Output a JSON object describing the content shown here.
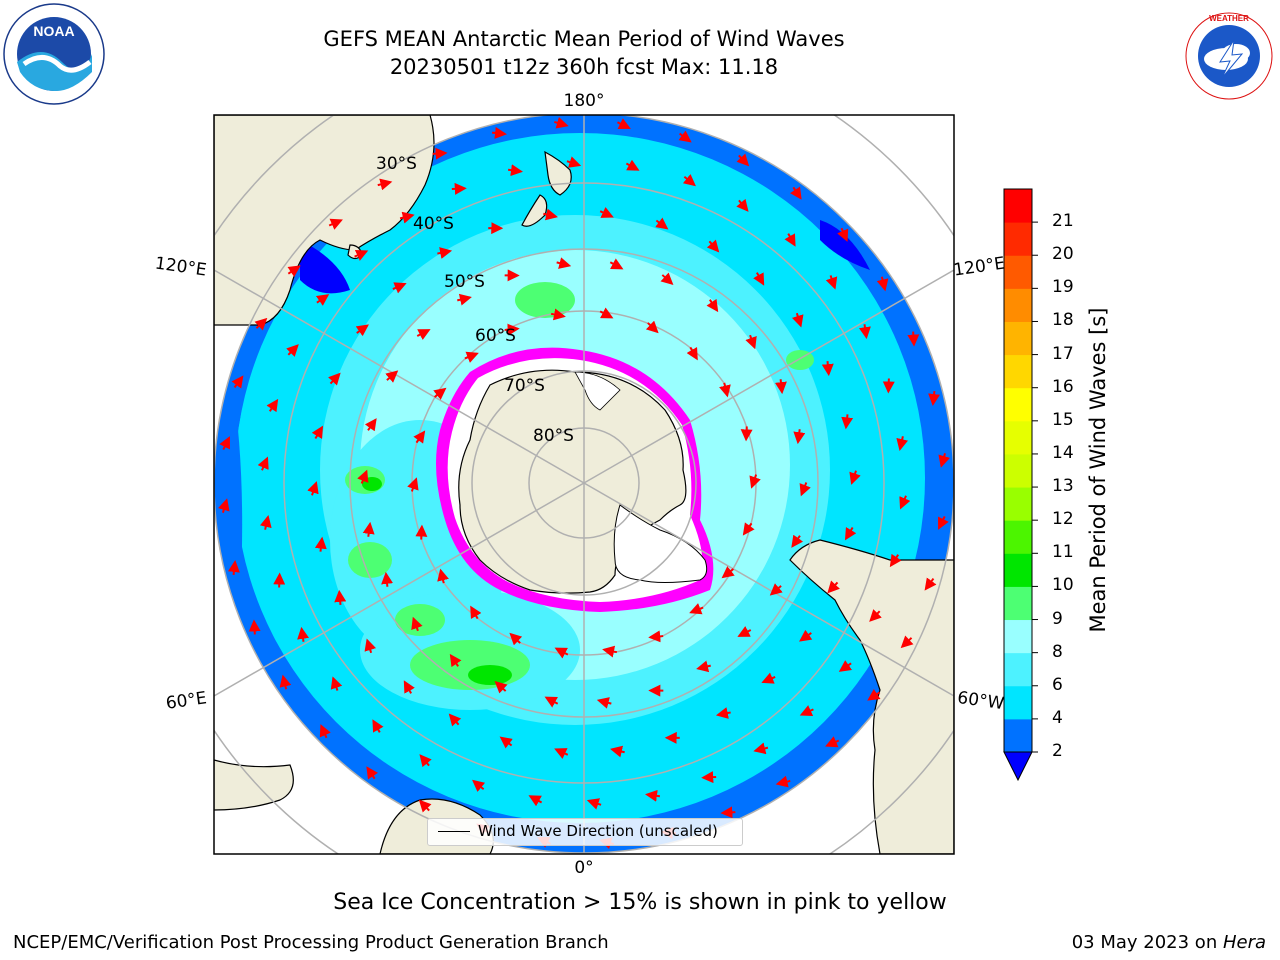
{
  "header": {
    "title_line1": "GEFS MEAN Antarctic Mean Period of Wind Waves",
    "title_line2": "20230501 t12z 360h fcst   Max: 11.18"
  },
  "logos": {
    "noaa": "NOAA",
    "noaa_ring_text": "NATIONAL OCEANIC AND ATMOSPHERIC ADMINISTRATION · U.S. DEPARTMENT OF COMMERCE",
    "nws_ring_text": "NATIONAL WEATHER SERVICE"
  },
  "map": {
    "projection": "south-polar-stereographic",
    "longitude_labels": [
      "180°",
      "120°E",
      "120°E",
      "60°E",
      "60°W",
      "0°"
    ],
    "latitude_labels": [
      "30°S",
      "40°S",
      "50°S",
      "60°S",
      "70°S",
      "80°S"
    ],
    "legend": "Wind Wave Direction (unscaled)",
    "arrow_color": "#ff0000",
    "land_color": "#efedda",
    "sea_ice_colors": [
      "#ff00ff",
      "#ff69b4",
      "#ffff00"
    ]
  },
  "colorbar": {
    "label": "Mean Period of Wind Waves [s]",
    "ticks": [
      "2",
      "4",
      "6",
      "8",
      "9",
      "10",
      "11",
      "12",
      "13",
      "14",
      "15",
      "16",
      "17",
      "18",
      "19",
      "20",
      "21"
    ],
    "colors": [
      "#0000ff",
      "#0072ff",
      "#00e5ff",
      "#4df2ff",
      "#99ffff",
      "#4dff73",
      "#00e600",
      "#4cf500",
      "#99ff00",
      "#ccff00",
      "#e6ff00",
      "#ffff00",
      "#ffd700",
      "#ffb400",
      "#ff8c00",
      "#ff5a00",
      "#ff2a00",
      "#ff0000"
    ],
    "extend": "min"
  },
  "caption": "Sea Ice Concentration > 15% is shown in pink to yellow",
  "footer": {
    "left": "NCEP/EMC/Verification Post Processing Product Generation Branch",
    "right_date": "03 May 2023 on ",
    "right_host": "Hera"
  }
}
